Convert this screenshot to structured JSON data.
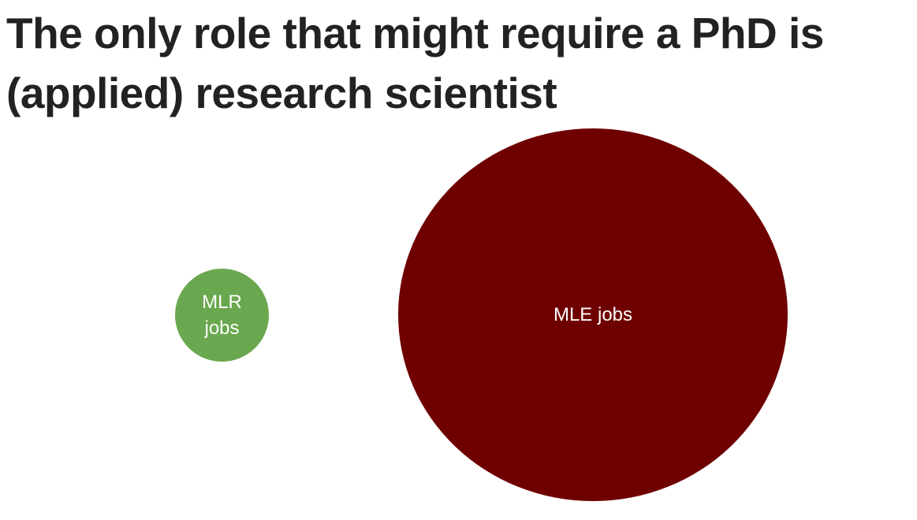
{
  "title": "The only role that might require a PhD is (applied) research scientist",
  "nodes": [
    {
      "label": "MLR jobs"
    },
    {
      "label": "MLE jobs"
    }
  ]
}
